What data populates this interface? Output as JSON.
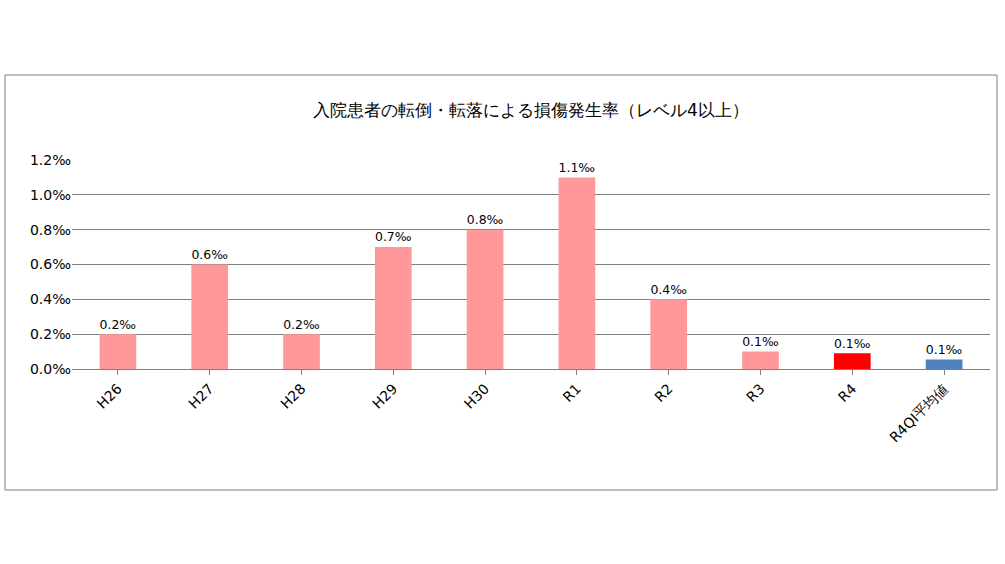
{
  "chart_data": {
    "type": "bar",
    "title": "入院患者の転倒・転落による損傷発生率（レベル4以上）",
    "categories": [
      "H26",
      "H27",
      "H28",
      "H29",
      "H30",
      "R1",
      "R2",
      "R3",
      "R4",
      "R4QI平均値"
    ],
    "values": [
      0.2,
      0.6,
      0.2,
      0.7,
      0.8,
      1.1,
      0.4,
      0.1,
      0.09,
      0.055
    ],
    "value_labels": [
      "0.2‰",
      "0.6‰",
      "0.2‰",
      "0.7‰",
      "0.8‰",
      "1.1‰",
      "0.4‰",
      "0.1‰",
      "0.1‰",
      "0.1‰"
    ],
    "colors": [
      "#ff9999",
      "#ff9999",
      "#ff9999",
      "#ff9999",
      "#ff9999",
      "#ff9999",
      "#ff9999",
      "#ff9999",
      "#ff0000",
      "#4f81bd"
    ],
    "ylim": [
      0,
      1.2
    ],
    "yticks": [
      {
        "value": 0,
        "label": "0.0‰"
      },
      {
        "value": 0.2,
        "label": "0.2‰"
      },
      {
        "value": 0.4,
        "label": "0.4‰"
      },
      {
        "value": 0.6,
        "label": "0.6‰"
      },
      {
        "value": 0.8,
        "label": "0.8‰"
      },
      {
        "value": 1.0,
        "label": "1.0‰"
      },
      {
        "value": 1.2,
        "label": "1.2‰"
      }
    ],
    "grid": true,
    "data_labels": true
  }
}
